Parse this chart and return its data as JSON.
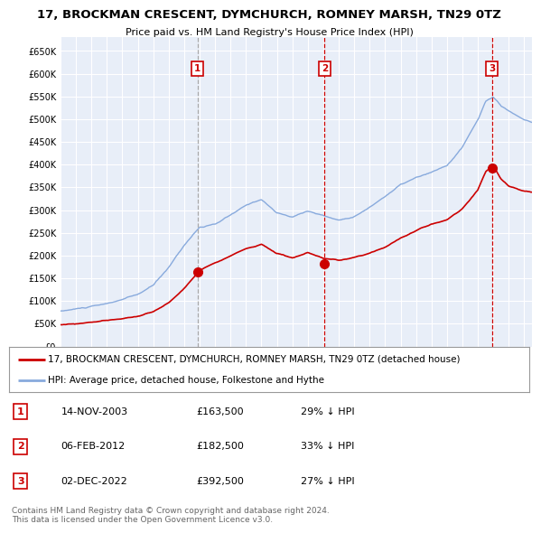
{
  "title": "17, BROCKMAN CRESCENT, DYMCHURCH, ROMNEY MARSH, TN29 0TZ",
  "subtitle": "Price paid vs. HM Land Registry's House Price Index (HPI)",
  "xlim_start": 1995.0,
  "xlim_end": 2025.5,
  "ylim": [
    0,
    680000
  ],
  "yticks": [
    0,
    50000,
    100000,
    150000,
    200000,
    250000,
    300000,
    350000,
    400000,
    450000,
    500000,
    550000,
    600000,
    650000
  ],
  "ytick_labels": [
    "£0",
    "£50K",
    "£100K",
    "£150K",
    "£200K",
    "£250K",
    "£300K",
    "£350K",
    "£400K",
    "£450K",
    "£500K",
    "£550K",
    "£600K",
    "£650K"
  ],
  "sale_dates": [
    2003.87,
    2012.09,
    2022.92
  ],
  "sale_prices": [
    163500,
    182500,
    392500
  ],
  "sale_labels": [
    "1",
    "2",
    "3"
  ],
  "sale_date_strs": [
    "14-NOV-2003",
    "06-FEB-2012",
    "02-DEC-2022"
  ],
  "sale_price_strs": [
    "£163,500",
    "£182,500",
    "£392,500"
  ],
  "sale_hpi_strs": [
    "29% ↓ HPI",
    "33% ↓ HPI",
    "27% ↓ HPI"
  ],
  "legend_line1": "17, BROCKMAN CRESCENT, DYMCHURCH, ROMNEY MARSH, TN29 0TZ (detached house)",
  "legend_line2": "HPI: Average price, detached house, Folkestone and Hythe",
  "footer": "Contains HM Land Registry data © Crown copyright and database right 2024.\nThis data is licensed under the Open Government Licence v3.0.",
  "sale_color": "#cc0000",
  "hpi_color": "#88aadd",
  "bg_color": "#e8eef8",
  "grid_color": "#cccccc",
  "sale1_line_color": "#aaaaaa"
}
